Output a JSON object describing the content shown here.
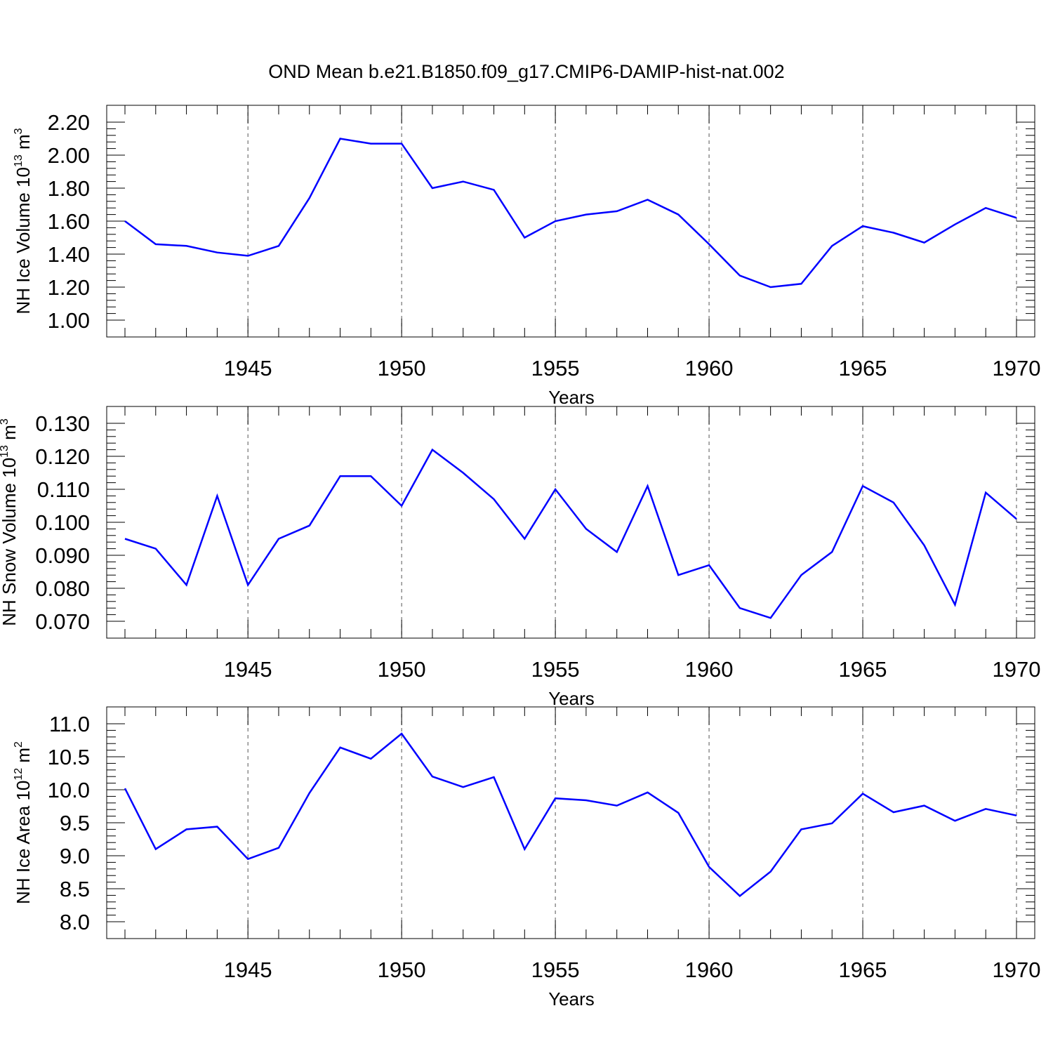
{
  "title": "OND Mean b.e21.B1850.f09_g17.CMIP6-DAMIP-hist-nat.002",
  "colors": {
    "line": "#0000ff",
    "axis": "#000000",
    "grid": "#555555"
  },
  "chart_data": [
    {
      "type": "line",
      "ylabel": "NH Ice Volume 10",
      "ylabel_exponent": "13",
      "ylabel_unit": " m",
      "ylabel_unit_exponent": "3",
      "xlabel": "Years",
      "xlim": [
        1941,
        1970
      ],
      "ylim": [
        1.0,
        2.2
      ],
      "xticks": [
        1945,
        1950,
        1955,
        1960,
        1965,
        1970
      ],
      "xtick_labels": [
        "1945",
        "1950",
        "1955",
        "1960",
        "1965",
        "1970"
      ],
      "yticks": [
        1.0,
        1.2,
        1.4,
        1.6,
        1.8,
        2.0,
        2.2
      ],
      "ytick_labels": [
        "1.00",
        "1.20",
        "1.40",
        "1.60",
        "1.80",
        "2.00",
        "2.20"
      ],
      "grid": "vertical dashed at major x ticks",
      "x": [
        1941,
        1942,
        1943,
        1944,
        1945,
        1946,
        1947,
        1948,
        1949,
        1950,
        1951,
        1952,
        1953,
        1954,
        1955,
        1956,
        1957,
        1958,
        1959,
        1960,
        1961,
        1962,
        1963,
        1964,
        1965,
        1966,
        1967,
        1968,
        1969,
        1970
      ],
      "values": [
        1.6,
        1.46,
        1.45,
        1.41,
        1.39,
        1.45,
        1.74,
        2.1,
        2.07,
        2.07,
        1.8,
        1.84,
        1.79,
        1.5,
        1.6,
        1.64,
        1.66,
        1.73,
        1.64,
        1.46,
        1.27,
        1.2,
        1.22,
        1.45,
        1.57,
        1.53,
        1.47,
        1.58,
        1.68,
        1.62
      ]
    },
    {
      "type": "line",
      "ylabel": "NH Snow Volume 10",
      "ylabel_exponent": "13",
      "ylabel_unit": " m",
      "ylabel_unit_exponent": "3",
      "xlabel": "Years",
      "xlim": [
        1941,
        1970
      ],
      "ylim": [
        0.07,
        0.13
      ],
      "xticks": [
        1945,
        1950,
        1955,
        1960,
        1965,
        1970
      ],
      "xtick_labels": [
        "1945",
        "1950",
        "1955",
        "1960",
        "1965",
        "1970"
      ],
      "yticks": [
        0.07,
        0.08,
        0.09,
        0.1,
        0.11,
        0.12,
        0.13
      ],
      "ytick_labels": [
        "0.070",
        "0.080",
        "0.090",
        "0.100",
        "0.110",
        "0.120",
        "0.130"
      ],
      "grid": "vertical dashed at major x ticks",
      "x": [
        1941,
        1942,
        1943,
        1944,
        1945,
        1946,
        1947,
        1948,
        1949,
        1950,
        1951,
        1952,
        1953,
        1954,
        1955,
        1956,
        1957,
        1958,
        1959,
        1960,
        1961,
        1962,
        1963,
        1964,
        1965,
        1966,
        1967,
        1968,
        1969,
        1970
      ],
      "values": [
        0.095,
        0.092,
        0.081,
        0.108,
        0.081,
        0.095,
        0.099,
        0.114,
        0.114,
        0.105,
        0.122,
        0.115,
        0.107,
        0.095,
        0.11,
        0.098,
        0.091,
        0.111,
        0.084,
        0.087,
        0.074,
        0.071,
        0.084,
        0.091,
        0.111,
        0.106,
        0.093,
        0.075,
        0.109,
        0.101
      ]
    },
    {
      "type": "line",
      "ylabel": "NH Ice Area 10",
      "ylabel_exponent": "12",
      "ylabel_unit": " m",
      "ylabel_unit_exponent": "2",
      "xlabel": "Years",
      "xlim": [
        1941,
        1970
      ],
      "ylim": [
        8.0,
        11.0
      ],
      "xticks": [
        1945,
        1950,
        1955,
        1960,
        1965,
        1970
      ],
      "xtick_labels": [
        "1945",
        "1950",
        "1955",
        "1960",
        "1965",
        "1970"
      ],
      "yticks": [
        8.0,
        8.5,
        9.0,
        9.5,
        10.0,
        10.5,
        11.0
      ],
      "ytick_labels": [
        "8.0",
        "8.5",
        "9.0",
        "9.5",
        "10.0",
        "10.5",
        "11.0"
      ],
      "grid": "vertical dashed at major x ticks",
      "x": [
        1941,
        1942,
        1943,
        1944,
        1945,
        1946,
        1947,
        1948,
        1949,
        1950,
        1951,
        1952,
        1953,
        1954,
        1955,
        1956,
        1957,
        1958,
        1959,
        1960,
        1961,
        1962,
        1963,
        1964,
        1965,
        1966,
        1967,
        1968,
        1969,
        1970
      ],
      "values": [
        10.02,
        9.1,
        9.4,
        9.44,
        8.95,
        9.12,
        9.95,
        10.64,
        10.47,
        10.85,
        10.2,
        10.04,
        10.19,
        9.1,
        9.87,
        9.84,
        9.76,
        9.96,
        9.65,
        8.83,
        8.39,
        8.76,
        9.4,
        9.49,
        9.94,
        9.66,
        9.76,
        9.53,
        9.71,
        9.61
      ]
    }
  ]
}
